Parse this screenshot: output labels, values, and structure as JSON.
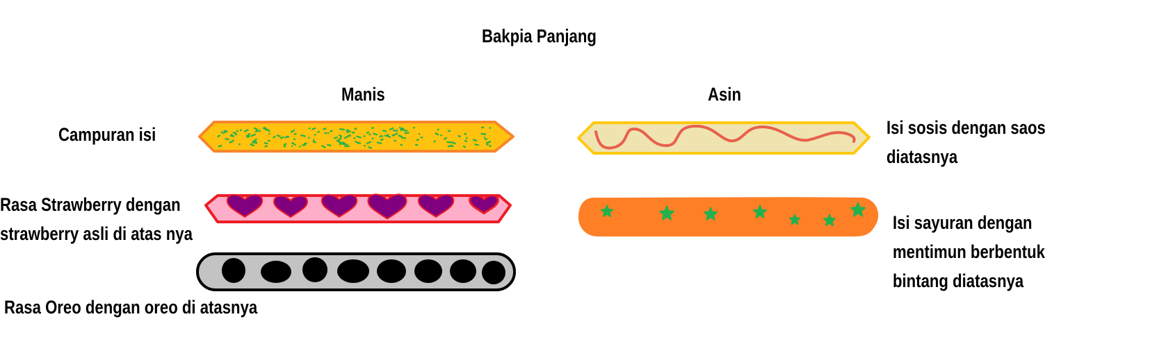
{
  "title": "Bakpia Panjang",
  "columns": {
    "manis": "Manis",
    "asin": "Asin"
  },
  "manis": [
    {
      "label": "Campuran isi",
      "fill": "#FFC20E",
      "outline": "#F7862A",
      "topping": "green-sprinkles-icon"
    },
    {
      "label": "Rasa Strawberry dengan\nstrawberry asli di atas nya",
      "fill": "#FFAEC9",
      "outline": "#ED1C24",
      "topping": "heart-icon"
    },
    {
      "label": "Rasa Oreo dengan oreo di atasnya",
      "fill": "#C3C3C3",
      "outline": "#000000",
      "topping": "oreo-icon"
    }
  ],
  "asin": [
    {
      "label": "Isi sosis dengan saos\ndiatasnya",
      "fill": "#EFE4B0",
      "outline": "#FFC90E",
      "topping": "sauce-squiggle-icon"
    },
    {
      "label": "Isi sayuran dengan\nmentimun berbentuk\nbintang diatasnya",
      "fill": "#FF7F27",
      "outline": "#FF7F27",
      "topping": "star-icon"
    }
  ],
  "colors": {
    "sprinkle": "#22B14C",
    "heart_fill": "#800080",
    "heart_outline": "#ED1C24",
    "oreo": "#000000",
    "sauce": "#E8604C",
    "star": "#22B14C"
  }
}
